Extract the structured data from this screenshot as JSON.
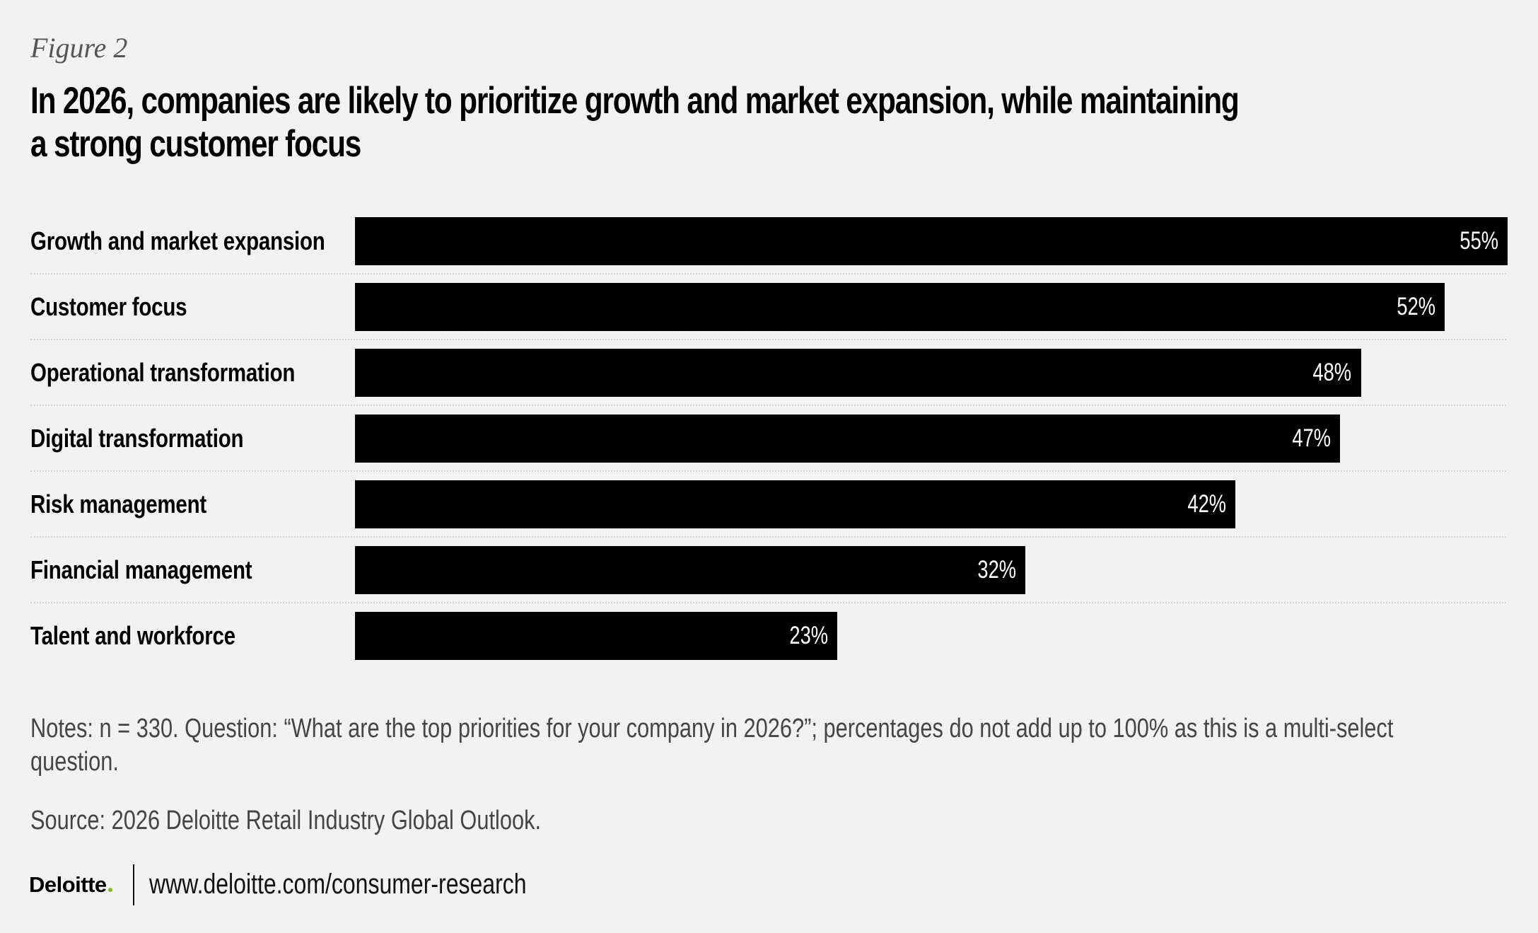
{
  "figure_label": "Figure 2",
  "title": {
    "lines": [
      "In 2026, companies are likely to prioritize growth and market expansion, while maintaining",
      "a strong customer focus"
    ]
  },
  "colors": {
    "background": "#f1f2f1",
    "bar": "#000000",
    "bar_value_text": "#ffffff",
    "separator": "#cfd0cf",
    "notes_text": "#454545",
    "brand_dot": "#86bc25"
  },
  "chart_data": {
    "type": "bar",
    "orientation": "horizontal",
    "title": "In 2026, companies are likely to prioritize growth and market expansion, while maintaining a strong customer focus",
    "xlabel": "",
    "ylabel": "",
    "unit": "%",
    "categories": [
      "Growth and market expansion",
      "Customer focus",
      "Operational transformation",
      "Digital transformation",
      "Risk management",
      "Financial management",
      "Talent and workforce"
    ],
    "values": [
      55,
      52,
      48,
      47,
      42,
      32,
      23
    ],
    "value_labels": [
      "55%",
      "52%",
      "48%",
      "47%",
      "42%",
      "32%",
      "23%"
    ],
    "xlim": [
      0,
      55
    ],
    "grid": false,
    "legend": "none",
    "row_separators": "dotted"
  },
  "notes": {
    "lines": [
      "Notes: n = 330. Question: “What are the top priorities for your company in 2026?”; percentages do not add up to 100% as this is a multi-select",
      "question."
    ]
  },
  "source": "Source: 2026 Deloitte Retail Industry Global Outlook.",
  "footer": {
    "logo_text": "Deloitte",
    "url": "www.deloitte.com/consumer-research"
  }
}
